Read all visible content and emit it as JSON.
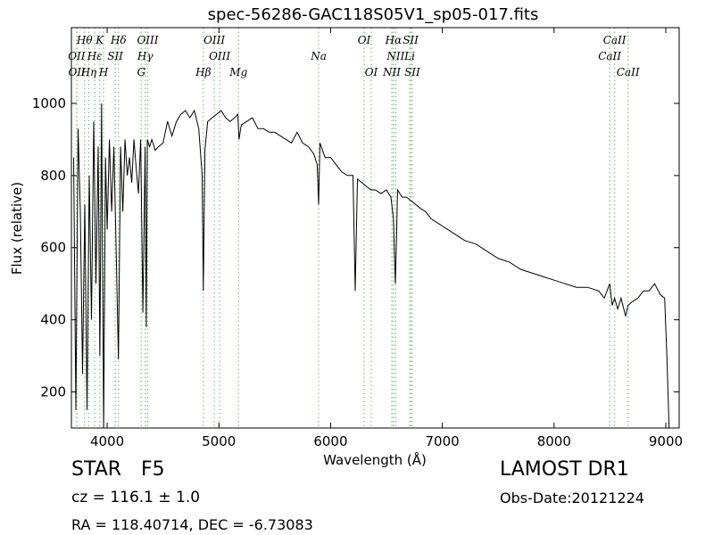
{
  "chart_data": {
    "type": "line",
    "title": "spec-56286-GAC118S05V1_sp05-017.fits",
    "xlabel": "Wavelength (Å)",
    "ylabel": "Flux (relative)",
    "xlim": [
      3680,
      9120
    ],
    "ylim": [
      100,
      1210
    ],
    "x_ticks": [
      4000,
      5000,
      6000,
      7000,
      8000,
      9000
    ],
    "y_ticks": [
      200,
      400,
      600,
      800,
      1000
    ],
    "grid": false,
    "series": [
      {
        "color": "#000000",
        "x": [
          3700,
          3720,
          3740,
          3760,
          3780,
          3800,
          3820,
          3840,
          3860,
          3880,
          3900,
          3920,
          3935,
          3950,
          3968,
          3985,
          4000,
          4020,
          4040,
          4060,
          4080,
          4101,
          4120,
          4140,
          4160,
          4180,
          4200,
          4220,
          4240,
          4260,
          4280,
          4300,
          4320,
          4340,
          4350,
          4360,
          4380,
          4400,
          4430,
          4460,
          4500,
          4540,
          4580,
          4620,
          4660,
          4700,
          4740,
          4780,
          4820,
          4850,
          4861,
          4875,
          4900,
          4940,
          4980,
          5020,
          5060,
          5100,
          5140,
          5170,
          5180,
          5200,
          5250,
          5300,
          5350,
          5400,
          5450,
          5500,
          5550,
          5600,
          5650,
          5700,
          5750,
          5800,
          5850,
          5880,
          5893,
          5905,
          5950,
          6000,
          6050,
          6100,
          6150,
          6200,
          6220,
          6240,
          6280,
          6320,
          6360,
          6400,
          6450,
          6500,
          6540,
          6562,
          6580,
          6600,
          6640,
          6680,
          6720,
          6760,
          6800,
          6850,
          6900,
          6950,
          7000,
          7100,
          7200,
          7300,
          7400,
          7500,
          7600,
          7700,
          7800,
          7900,
          8000,
          8100,
          8200,
          8300,
          8400,
          8450,
          8498,
          8520,
          8542,
          8570,
          8600,
          8640,
          8662,
          8700,
          8750,
          8800,
          8850,
          8900,
          8950,
          8990,
          9010,
          9030
        ],
        "y": [
          850,
          150,
          930,
          700,
          250,
          720,
          150,
          800,
          400,
          950,
          500,
          880,
          300,
          1000,
          100,
          850,
          650,
          900,
          700,
          880,
          600,
          290,
          880,
          700,
          900,
          800,
          850,
          780,
          900,
          820,
          750,
          900,
          420,
          880,
          380,
          900,
          880,
          900,
          870,
          880,
          890,
          950,
          910,
          950,
          970,
          980,
          960,
          980,
          930,
          800,
          480,
          870,
          950,
          960,
          970,
          980,
          960,
          950,
          960,
          970,
          900,
          940,
          950,
          960,
          930,
          930,
          920,
          920,
          910,
          900,
          890,
          920,
          890,
          880,
          860,
          830,
          720,
          890,
          850,
          850,
          830,
          810,
          800,
          800,
          480,
          790,
          780,
          770,
          760,
          760,
          750,
          760,
          740,
          680,
          500,
          760,
          740,
          740,
          730,
          720,
          710,
          700,
          680,
          670,
          660,
          640,
          620,
          610,
          590,
          570,
          560,
          540,
          530,
          520,
          510,
          500,
          490,
          490,
          480,
          460,
          500,
          440,
          460,
          430,
          460,
          410,
          440,
          450,
          460,
          480,
          480,
          500,
          470,
          460,
          300,
          100
        ]
      }
    ],
    "lines": [
      {
        "label": "Hθ",
        "x": 3798,
        "row": 0
      },
      {
        "label": "K",
        "x": 3934,
        "row": 0
      },
      {
        "label": "Hδ",
        "x": 4102,
        "row": 0
      },
      {
        "label": "OIII",
        "x": 4363,
        "row": 0
      },
      {
        "label": "OIII",
        "x": 4959,
        "row": 0
      },
      {
        "label": "OI",
        "x": 6300,
        "row": 0
      },
      {
        "label": "Hα",
        "x": 6563,
        "row": 0
      },
      {
        "label": "SII",
        "x": 6716,
        "row": 0
      },
      {
        "label": "CaII",
        "x": 8542,
        "row": 0
      },
      {
        "label": "OII",
        "x": 3727,
        "row": 1
      },
      {
        "label": "Hε",
        "x": 3889,
        "row": 1
      },
      {
        "label": "SII",
        "x": 4072,
        "row": 1
      },
      {
        "label": "Hγ",
        "x": 4341,
        "row": 1
      },
      {
        "label": "OIII",
        "x": 5007,
        "row": 1
      },
      {
        "label": "Na",
        "x": 5893,
        "row": 1
      },
      {
        "label": "NII",
        "x": 6583,
        "row": 1
      },
      {
        "label": "Li",
        "x": 6708,
        "row": 1
      },
      {
        "label": "CaII",
        "x": 8498,
        "row": 1
      },
      {
        "label": "OII",
        "x": 3729,
        "row": 2
      },
      {
        "label": "Hη",
        "x": 3835,
        "row": 2
      },
      {
        "label": "H",
        "x": 3968,
        "row": 2
      },
      {
        "label": "G",
        "x": 4305,
        "row": 2
      },
      {
        "label": "Hβ",
        "x": 4861,
        "row": 2
      },
      {
        "label": "Mg",
        "x": 5176,
        "row": 2
      },
      {
        "label": "OI",
        "x": 6364,
        "row": 2
      },
      {
        "label": "NII",
        "x": 6548,
        "row": 2
      },
      {
        "label": "SII",
        "x": 6731,
        "row": 2
      },
      {
        "label": "CaII",
        "x": 8662,
        "row": 2
      }
    ],
    "line_color": "#80c080"
  },
  "footer": {
    "object_type": "STAR",
    "subclass": "F5",
    "redshift": "cz = 116.1 ± 1.0",
    "coordinates": "RA = 118.40714, DEC = -6.73083",
    "survey": "LAMOST DR1",
    "obs_date": "Obs-Date:20121224"
  }
}
